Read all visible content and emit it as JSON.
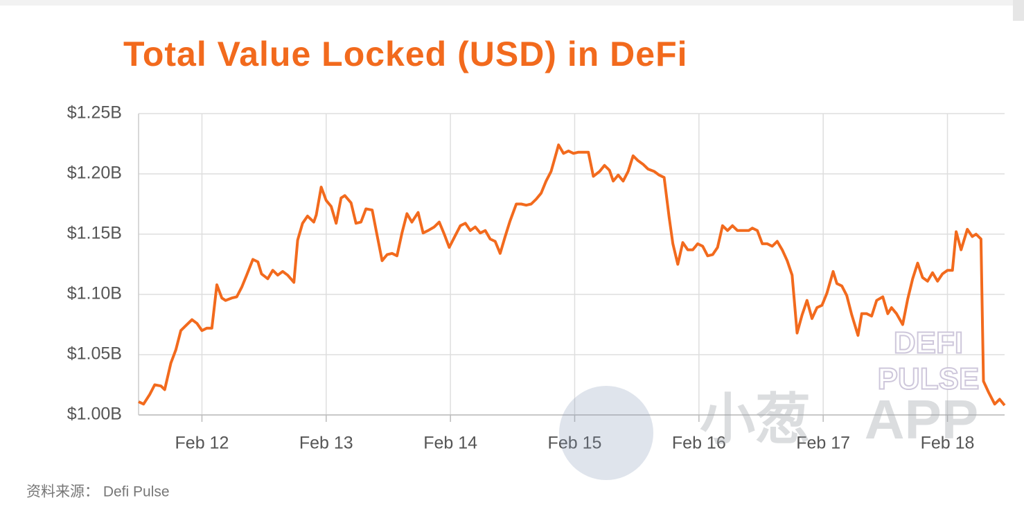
{
  "chart_data": {
    "type": "line",
    "title": "Total Value Locked (USD) in DeFi",
    "source": "资料来源： Defi Pulse",
    "watermarks": [
      "DEFI",
      "PULSE",
      "小葱",
      "APP"
    ],
    "grid": true,
    "xlim": [
      11.49,
      18.46
    ],
    "xticks": [
      {
        "value": 12,
        "label": "Feb 12"
      },
      {
        "value": 13,
        "label": "Feb 13"
      },
      {
        "value": 14,
        "label": "Feb 14"
      },
      {
        "value": 15,
        "label": "Feb 15"
      },
      {
        "value": 16,
        "label": "Feb 16"
      },
      {
        "value": 17,
        "label": "Feb 17"
      },
      {
        "value": 18,
        "label": "Feb 18"
      }
    ],
    "ylim": [
      1.0,
      1.25
    ],
    "yticks": [
      {
        "value": 1.0,
        "label": "$1.00B"
      },
      {
        "value": 1.05,
        "label": "$1.05B"
      },
      {
        "value": 1.1,
        "label": "$1.10B"
      },
      {
        "value": 1.15,
        "label": "$1.15B"
      },
      {
        "value": 1.2,
        "label": "$1.20B"
      },
      {
        "value": 1.25,
        "label": "$1.25B"
      }
    ],
    "x": [
      11.49,
      11.53,
      11.58,
      11.62,
      11.67,
      11.7,
      11.75,
      11.79,
      11.83,
      11.87,
      11.92,
      11.96,
      12.0,
      12.04,
      12.08,
      12.12,
      12.16,
      12.19,
      12.24,
      12.28,
      12.32,
      12.36,
      12.41,
      12.45,
      12.48,
      12.53,
      12.57,
      12.61,
      12.65,
      12.69,
      12.74,
      12.77,
      12.81,
      12.85,
      12.9,
      12.92,
      12.96,
      13.0,
      13.04,
      13.08,
      13.12,
      13.15,
      13.2,
      13.24,
      13.28,
      13.32,
      13.37,
      13.41,
      13.45,
      13.49,
      13.53,
      13.57,
      13.61,
      13.65,
      13.69,
      13.74,
      13.78,
      13.82,
      13.87,
      13.91,
      13.95,
      13.99,
      14.04,
      14.08,
      14.12,
      14.16,
      14.2,
      14.24,
      14.28,
      14.32,
      14.36,
      14.4,
      14.44,
      14.48,
      14.53,
      14.57,
      14.61,
      14.65,
      14.69,
      14.73,
      14.77,
      14.81,
      14.84,
      14.87,
      14.91,
      14.95,
      14.99,
      15.03,
      15.08,
      15.11,
      15.15,
      15.2,
      15.24,
      15.28,
      15.31,
      15.35,
      15.39,
      15.43,
      15.47,
      15.51,
      15.55,
      15.59,
      15.64,
      15.68,
      15.72,
      15.76,
      15.79,
      15.83,
      15.87,
      15.91,
      15.95,
      15.99,
      16.03,
      16.07,
      16.11,
      16.15,
      16.19,
      16.23,
      16.27,
      16.31,
      16.35,
      16.4,
      16.43,
      16.47,
      16.51,
      16.55,
      16.59,
      16.63,
      16.67,
      16.71,
      16.75,
      16.79,
      16.83,
      16.87,
      16.91,
      16.95,
      16.99,
      17.03,
      17.08,
      17.11,
      17.15,
      17.19,
      17.23,
      17.28,
      17.31,
      17.35,
      17.39,
      17.43,
      17.48,
      17.52,
      17.55,
      17.59,
      17.64,
      17.68,
      17.72,
      17.76,
      17.8,
      17.84,
      17.88,
      17.92,
      17.96,
      18.0,
      18.04,
      18.07,
      18.11,
      18.16,
      18.2,
      18.23,
      18.27,
      18.29,
      18.33,
      18.38,
      18.42,
      18.46
    ],
    "series": [
      {
        "color": "#f26a1d",
        "values": [
          1.011,
          1.009,
          1.017,
          1.025,
          1.024,
          1.021,
          1.043,
          1.054,
          1.07,
          1.074,
          1.079,
          1.076,
          1.07,
          1.072,
          1.072,
          1.108,
          1.097,
          1.095,
          1.097,
          1.098,
          1.106,
          1.116,
          1.129,
          1.127,
          1.117,
          1.113,
          1.12,
          1.116,
          1.119,
          1.116,
          1.11,
          1.145,
          1.159,
          1.165,
          1.16,
          1.166,
          1.189,
          1.178,
          1.173,
          1.159,
          1.18,
          1.182,
          1.176,
          1.159,
          1.16,
          1.171,
          1.17,
          1.149,
          1.128,
          1.133,
          1.134,
          1.132,
          1.151,
          1.167,
          1.16,
          1.168,
          1.151,
          1.153,
          1.156,
          1.16,
          1.15,
          1.139,
          1.149,
          1.157,
          1.159,
          1.153,
          1.156,
          1.151,
          1.153,
          1.146,
          1.144,
          1.134,
          1.148,
          1.161,
          1.175,
          1.175,
          1.174,
          1.175,
          1.179,
          1.184,
          1.194,
          1.202,
          1.213,
          1.224,
          1.217,
          1.219,
          1.217,
          1.218,
          1.218,
          1.218,
          1.198,
          1.202,
          1.207,
          1.203,
          1.194,
          1.199,
          1.194,
          1.202,
          1.215,
          1.211,
          1.208,
          1.204,
          1.202,
          1.199,
          1.197,
          1.164,
          1.142,
          1.125,
          1.143,
          1.137,
          1.137,
          1.142,
          1.14,
          1.132,
          1.133,
          1.139,
          1.157,
          1.153,
          1.157,
          1.153,
          1.153,
          1.153,
          1.155,
          1.153,
          1.142,
          1.142,
          1.14,
          1.144,
          1.137,
          1.128,
          1.116,
          1.068,
          1.083,
          1.095,
          1.08,
          1.089,
          1.091,
          1.101,
          1.119,
          1.109,
          1.107,
          1.099,
          1.083,
          1.066,
          1.084,
          1.084,
          1.082,
          1.095,
          1.098,
          1.084,
          1.089,
          1.084,
          1.075,
          1.096,
          1.113,
          1.126,
          1.114,
          1.111,
          1.118,
          1.111,
          1.117,
          1.12,
          1.12,
          1.152,
          1.137,
          1.154,
          1.148,
          1.15,
          1.146,
          1.028,
          1.019,
          1.009,
          1.013,
          1.008
        ]
      }
    ]
  }
}
